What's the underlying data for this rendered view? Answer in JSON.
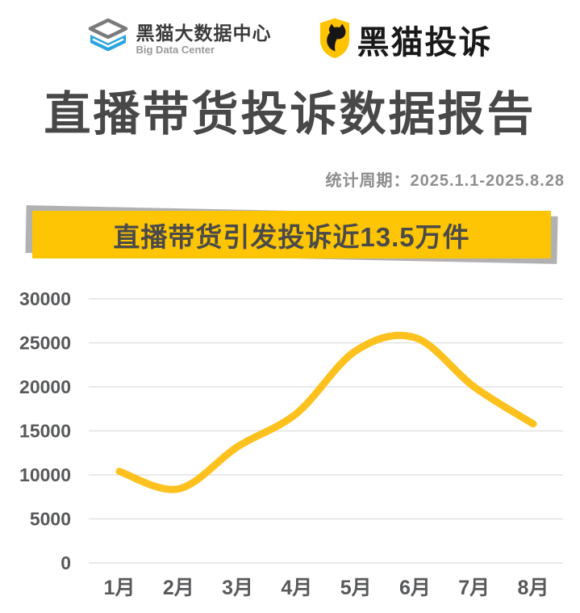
{
  "header": {
    "logo_bdc": {
      "name_cn": "黑猫大数据中心",
      "name_en": "Big Data Center"
    },
    "logo_hmts": {
      "name": "黑猫投诉"
    }
  },
  "title": "直播带货投诉数据报告",
  "period": "统计周期：2025.1.1-2025.8.28",
  "banner": {
    "text": "直播带货引发投诉近13.5万件",
    "bg_color": "#FDC504",
    "shadow_color": "#B1B1B1",
    "text_color": "#4A4A4A"
  },
  "colors": {
    "logo_blue": "#2AA3DF",
    "shield_yellow": "#FFC300",
    "grid_color": "#E3E3E3",
    "axis_label_color": "#58595B"
  },
  "chart_data": {
    "type": "line",
    "title": "直播带货引发投诉近13.5万件",
    "categories": [
      "1月",
      "2月",
      "3月",
      "4月",
      "5月",
      "6月",
      "7月",
      "8月"
    ],
    "values": [
      10400,
      8400,
      13200,
      17000,
      24100,
      25600,
      20000,
      15800
    ],
    "xlabel": "",
    "ylabel": "",
    "ylim": [
      0,
      30000
    ],
    "ytick_step": 5000,
    "grid": true,
    "legend": "none",
    "line_color": "#FFC11E",
    "smooth": true
  }
}
